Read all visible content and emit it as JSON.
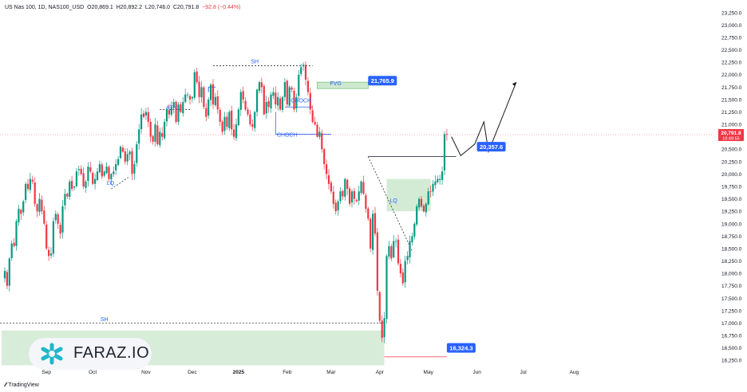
{
  "header": {
    "symbol": "US Nas 100, 1D, NAS100_USD",
    "open_label": "O",
    "open_value": "20,869.1",
    "high_label": "H",
    "high_value": "20,892.2",
    "low_label": "L",
    "low_value": "20,746.0",
    "close_label": "C",
    "close_value": "20,791.8",
    "change": "−92.8 (−0.44%)"
  },
  "brand": {
    "name": "TradingView"
  },
  "logo": {
    "text": "FARAZ.IO"
  },
  "colors": {
    "up": "#089981",
    "down": "#f23645",
    "zone": "#c8e6c9",
    "label_bg": "#2962ff",
    "line": "#131722"
  },
  "chart_data": {
    "type": "candlestick",
    "y_axis": {
      "min": 16125,
      "max": 23375,
      "position": "right",
      "ticks": [
        16250,
        16500,
        16750,
        17000,
        17250,
        17500,
        17750,
        18000,
        18250,
        18500,
        18750,
        19000,
        19250,
        19500,
        19750,
        20000,
        20250,
        20500,
        20750,
        21000,
        21250,
        21500,
        21750,
        22000,
        22250,
        22500,
        22750,
        23000,
        23250
      ],
      "tick_labels": [
        "16,250.0",
        "16,500.0",
        "16,750.0",
        "17,000.0",
        "17,250.0",
        "17,500.0",
        "17,750.0",
        "18,000.0",
        "18,250.0",
        "18,500.0",
        "18,750.0",
        "19,000.0",
        "19,250.0",
        "19,500.0",
        "19,750.0",
        "20,000.0",
        "20,250.0",
        "20,500.0",
        "20,750.0",
        "21,000.0",
        "21,250.0",
        "21,500.0",
        "21,750.0",
        "22,000.0",
        "22,250.0",
        "22,500.0",
        "22,750.0",
        "23,000.0",
        "23,250.0"
      ]
    },
    "x_axis": {
      "labels": [
        {
          "text": "Sep",
          "bar": 18
        },
        {
          "text": "Oct",
          "bar": 38
        },
        {
          "text": "Nov",
          "bar": 61
        },
        {
          "text": "Dec",
          "bar": 81
        },
        {
          "text": "2025",
          "bar": 101
        },
        {
          "text": "Feb",
          "bar": 122
        },
        {
          "text": "Mar",
          "bar": 141
        },
        {
          "text": "Apr",
          "bar": 162
        },
        {
          "text": "May",
          "bar": 183
        },
        {
          "text": "Jun",
          "bar": 204
        },
        {
          "text": "Jul",
          "bar": 224
        },
        {
          "text": "Aug",
          "bar": 246
        }
      ]
    },
    "current_price": {
      "value": 20791.8,
      "label": "20,791.8",
      "countdown": "10:49:55"
    },
    "closes": [
      18050,
      17750,
      18300,
      18600,
      18550,
      19050,
      19300,
      19200,
      19450,
      19800,
      19700,
      19900,
      19850,
      19400,
      19250,
      19500,
      19250,
      19000,
      18500,
      18350,
      18400,
      19050,
      19200,
      19000,
      18800,
      19350,
      19600,
      19550,
      19850,
      19700,
      19750,
      20050,
      20100,
      20000,
      19750,
      19850,
      20150,
      20050,
      19800,
      19900,
      20050,
      20200,
      19950,
      20050,
      20150,
      19900,
      20000,
      20050,
      20200,
      20300,
      20550,
      20450,
      20250,
      20400,
      20450,
      20000,
      20200,
      20600,
      20900,
      21200,
      21150,
      21250,
      21050,
      20750,
      20650,
      21000,
      20600,
      20850,
      20750,
      21050,
      21300,
      21200,
      21350,
      21450,
      21050,
      21400,
      21250,
      21450,
      21600,
      21600,
      21500,
      21550,
      22050,
      21850,
      21550,
      21750,
      21350,
      21150,
      21500,
      21800,
      21400,
      21550,
      21300,
      21050,
      20850,
      21150,
      20950,
      21250,
      20900,
      20750,
      21000,
      21300,
      21650,
      21500,
      21300,
      21200,
      21000,
      20950,
      21250,
      21700,
      21850,
      21750,
      21200,
      21450,
      21350,
      21600,
      21650,
      21400,
      21550,
      21300,
      21550,
      21850,
      21400,
      21750,
      21700,
      21300,
      21550,
      22000,
      22150,
      22200,
      21900,
      21650,
      21300,
      21050,
      21000,
      20750,
      20850,
      20500,
      20200,
      20000,
      19800,
      19650,
      19400,
      19250,
      19450,
      19650,
      19550,
      19900,
      19700,
      19400,
      19650,
      19500,
      19450,
      19650,
      19850,
      19600,
      19300,
      19100,
      18500,
      19200,
      18800,
      17650,
      17050,
      16700,
      17100,
      18350,
      18550,
      18300,
      18650,
      18650,
      18200,
      18000,
      17800,
      18250,
      18350,
      18650,
      18750,
      19000,
      19350,
      19500,
      19350,
      19250,
      19400,
      19650,
      19650,
      19800,
      19850,
      19900,
      19900,
      20050,
      20800,
      20792
    ]
  },
  "annotations": {
    "labels": [
      {
        "text": "SH",
        "price": 22225,
        "bar": 108
      },
      {
        "text": "ATH",
        "price": 21300,
        "bar": 72
      },
      {
        "text": "LQ.",
        "price": 19780,
        "bar": 46
      },
      {
        "text": "CHOCH",
        "price": 21440,
        "bar": 128
      },
      {
        "text": "CHOCH",
        "price": 20750,
        "bar": 122
      },
      {
        "text": "FVG",
        "price": 21785,
        "bar": 143
      },
      {
        "text": "LQ",
        "price": 19430,
        "bar": 168
      },
      {
        "text": "SH",
        "price": 17040,
        "bar": 43
      }
    ],
    "price_tags": [
      {
        "text": "21,765.9",
        "price": 21880,
        "bar": 157
      },
      {
        "text": "20,357.6",
        "price": 20550,
        "bar": 204
      },
      {
        "text": "16,324.3",
        "price": 16500,
        "bar": 191
      }
    ]
  }
}
